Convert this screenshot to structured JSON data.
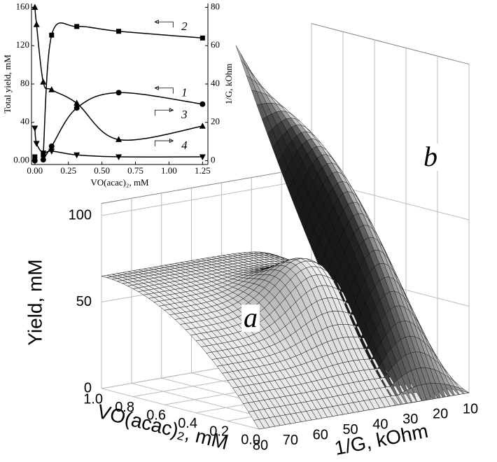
{
  "chart_data": [
    {
      "type": "scatter",
      "x_label": "VO(acac)₂, mM",
      "y_label": "Total yield, mM",
      "y2_label": "1/G, kOhm",
      "x": [
        0,
        0.0125,
        0.0625,
        0.125,
        0.3125,
        0.625,
        1.25
      ],
      "series": [
        {
          "name": "1",
          "color": "#000000",
          "marker": "circle",
          "axis": "y",
          "values": [
            0,
            null,
            1,
            15,
            55,
            71,
            59
          ]
        },
        {
          "name": "2",
          "color": "#000000",
          "marker": "square",
          "axis": "y",
          "values": [
            4,
            null,
            6,
            131,
            140,
            135,
            128
          ]
        },
        {
          "name": "3",
          "color": "#000000",
          "marker": "triangle-up",
          "axis": "y2",
          "values": [
            80,
            71,
            41,
            37,
            30,
            11,
            18
          ]
        },
        {
          "name": "4",
          "color": "#000000",
          "marker": "triangle-down",
          "axis": "y2",
          "values": [
            17,
            9,
            4,
            5,
            3,
            2,
            2
          ]
        }
      ],
      "xlim": [
        -0.025,
        1.29
      ],
      "xticks": [
        {
          "value": 0,
          "label": "0.00"
        },
        0.25,
        {
          "value": 0.5,
          "label": "0.50"
        },
        0.75,
        {
          "value": 1,
          "label": "1.00"
        },
        1.25
      ],
      "ylim": [
        -4,
        164
      ],
      "yticks": [
        {
          "value": 0,
          "label": "0.00"
        },
        40,
        80,
        120,
        160
      ],
      "y2lim": [
        -2,
        82
      ],
      "y2ticks": [
        0,
        20,
        40,
        60,
        80
      ]
    },
    {
      "type": "surface3d",
      "surface_labels": [
        "a",
        "b"
      ],
      "x_label": "VO(acac)₂, mM",
      "y_label": "1/G, kOhm",
      "z_label": "Yield, mM",
      "xlim": [
        0,
        1
      ],
      "xticks": [
        {
          "value": 0,
          "label": "0.0"
        },
        0.2,
        0.4,
        0.6,
        0.8,
        {
          "value": 1,
          "label": "1.0"
        }
      ],
      "ylim": [
        10,
        80
      ],
      "yticks": [
        10,
        20,
        30,
        40,
        50,
        60,
        70,
        80
      ],
      "zlim": [
        0,
        100
      ],
      "zticks": [
        0,
        50,
        100
      ]
    }
  ]
}
